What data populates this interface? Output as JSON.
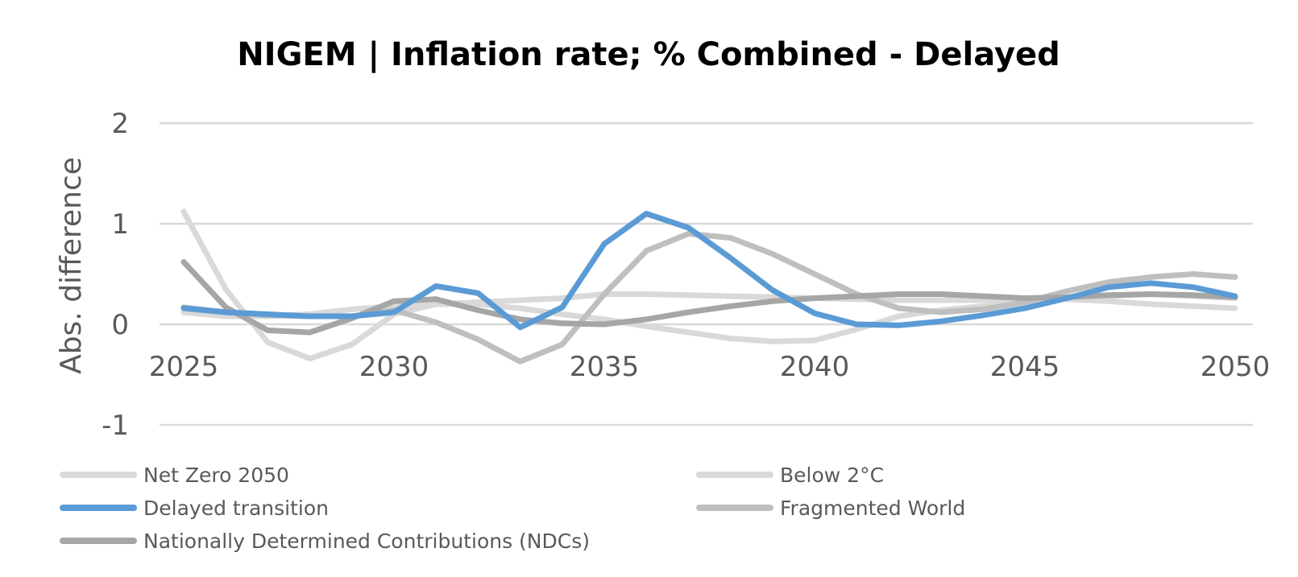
{
  "chart_data": {
    "type": "line",
    "title": "NIGEM | Inflation rate; % Combined - Delayed",
    "ylabel": "Abs. difference",
    "xlabel": "",
    "x": [
      2025,
      2026,
      2027,
      2028,
      2029,
      2030,
      2031,
      2032,
      2033,
      2034,
      2035,
      2036,
      2037,
      2038,
      2039,
      2040,
      2041,
      2042,
      2043,
      2044,
      2045,
      2046,
      2047,
      2048,
      2049,
      2050
    ],
    "x_ticks": [
      "2025",
      "2030",
      "2035",
      "2040",
      "2045",
      "2050"
    ],
    "y_ticks": [
      "2",
      "1",
      "0",
      "-1"
    ],
    "ylim": [
      -1,
      2
    ],
    "xlim": [
      2025,
      2050
    ],
    "grid": true,
    "legend_position": "bottom",
    "series": [
      {
        "name": "Net Zero 2050",
        "color": "#d9d9d9",
        "values": [
          1.12,
          0.35,
          -0.18,
          -0.34,
          -0.2,
          0.1,
          0.2,
          0.22,
          0.24,
          0.26,
          0.3,
          0.3,
          0.29,
          0.28,
          0.27,
          0.26,
          0.25,
          0.24,
          0.24,
          0.24,
          0.25,
          0.25,
          0.23,
          0.2,
          0.18,
          0.16
        ]
      },
      {
        "name": "Below 2°C",
        "color": "#d9d9d9",
        "values": [
          0.12,
          0.08,
          0.08,
          0.1,
          0.15,
          0.18,
          0.2,
          0.2,
          0.16,
          0.1,
          0.05,
          -0.02,
          -0.08,
          -0.14,
          -0.17,
          -0.16,
          -0.05,
          0.08,
          0.14,
          0.18,
          0.22,
          0.26,
          0.28,
          0.3,
          0.28,
          0.26
        ]
      },
      {
        "name": "Delayed transition",
        "color": "#5b9bd5",
        "values": [
          0.16,
          0.12,
          0.1,
          0.08,
          0.08,
          0.12,
          0.38,
          0.31,
          -0.03,
          0.17,
          0.8,
          1.1,
          0.96,
          0.66,
          0.34,
          0.11,
          0.0,
          -0.01,
          0.03,
          0.09,
          0.16,
          0.26,
          0.37,
          0.41,
          0.37,
          0.28
        ]
      },
      {
        "name": "Fragmented World",
        "color": "#bfbfbf",
        "values": [
          0.17,
          0.12,
          0.09,
          0.08,
          0.08,
          0.14,
          0.02,
          -0.15,
          -0.37,
          -0.2,
          0.3,
          0.73,
          0.9,
          0.86,
          0.7,
          0.5,
          0.3,
          0.16,
          0.12,
          0.15,
          0.22,
          0.33,
          0.42,
          0.47,
          0.5,
          0.47
        ]
      },
      {
        "name": "Nationally Determined Contributions (NDCs)",
        "color": "#a6a6a6",
        "values": [
          0.62,
          0.17,
          -0.06,
          -0.08,
          0.06,
          0.23,
          0.25,
          0.14,
          0.05,
          0.01,
          0.0,
          0.05,
          0.12,
          0.18,
          0.23,
          0.26,
          0.28,
          0.3,
          0.3,
          0.28,
          0.26,
          0.27,
          0.29,
          0.3,
          0.29,
          0.27
        ]
      }
    ]
  }
}
